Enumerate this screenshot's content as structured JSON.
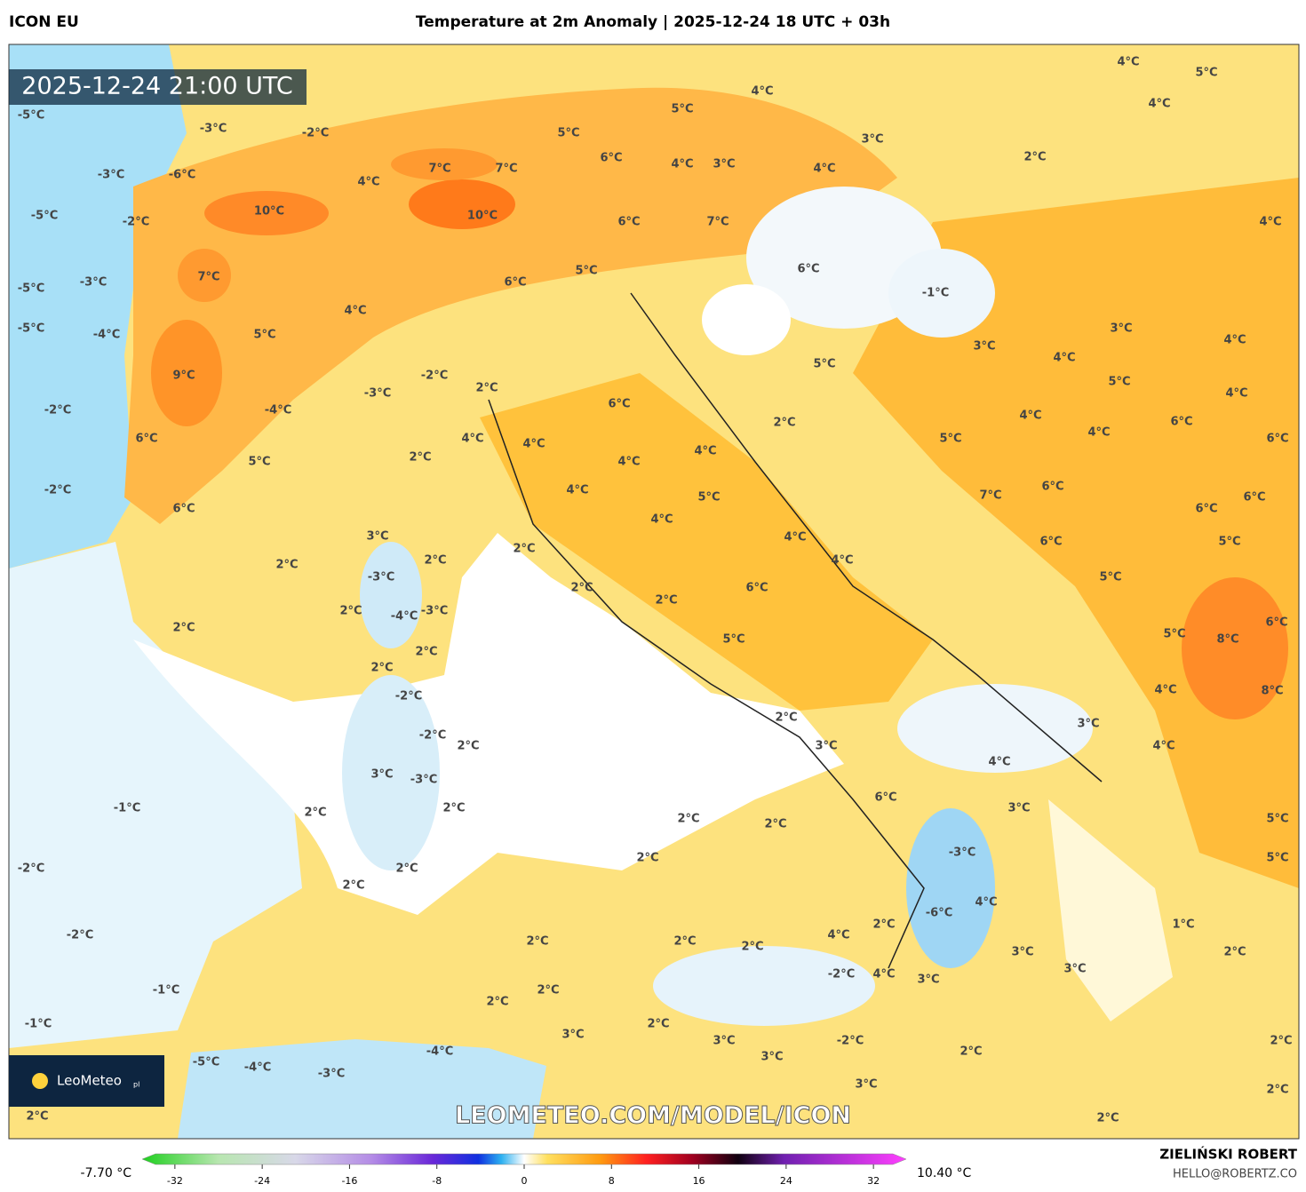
{
  "header": {
    "model": "ICON EU",
    "title": "Temperature at 2m Anomaly | 2025-12-24 18 UTC + 03h"
  },
  "map": {
    "valid_time": "2025-12-24 21:00 UTC",
    "watermark": "LEOMETEO.COM/MODEL/ICON",
    "logo": {
      "name": "LeoMeteo",
      "suffix": "pl"
    },
    "labels": [
      "-5°C",
      "-3°C",
      "-2°C",
      "-3°C",
      "-6°C",
      "4°C",
      "7°C",
      "7°C",
      "5°C",
      "5°C",
      "4°C",
      "6°C",
      "4°C",
      "3°C",
      "4°C",
      "3°C",
      "4°C",
      "5°C",
      "4°C",
      "2°C",
      "-5°C",
      "-2°C",
      "10°C",
      "10°C",
      "6°C",
      "7°C",
      "4°C",
      "-5°C",
      "-3°C",
      "7°C",
      "5°C",
      "6°C",
      "6°C",
      "-1°C",
      "-5°C",
      "-4°C",
      "4°C",
      "5°C",
      "3°C",
      "4°C",
      "3°C",
      "4°C",
      "9°C",
      "-3°C",
      "-2°C",
      "2°C",
      "5°C",
      "5°C",
      "4°C",
      "-2°C",
      "-4°C",
      "6°C",
      "2°C",
      "4°C",
      "4°C",
      "6°C",
      "6°C",
      "4°C",
      "4°C",
      "5°C",
      "6°C",
      "2°C",
      "4°C",
      "5°C",
      "4°C",
      "-2°C",
      "6°C",
      "4°C",
      "5°C",
      "7°C",
      "6°C",
      "6°C",
      "6°C",
      "3°C",
      "4°C",
      "4°C",
      "6°C",
      "5°C",
      "2°C",
      "2°C",
      "2°C",
      "4°C",
      "-3°C",
      "2°C",
      "6°C",
      "5°C",
      "2°C",
      "-4°C",
      "-3°C",
      "2°C",
      "2°C",
      "2°C",
      "5°C",
      "5°C",
      "8°C",
      "6°C",
      "2°C",
      "-2°C",
      "2°C",
      "4°C",
      "8°C",
      "-2°C",
      "2°C",
      "3°C",
      "3°C",
      "4°C",
      "4°C",
      "3°C",
      "-3°C",
      "6°C",
      "-1°C",
      "2°C",
      "3°C",
      "2°C",
      "2°C",
      "2°C",
      "5°C",
      "-3°C",
      "2°C",
      "5°C",
      "-2°C",
      "2°C",
      "2°C",
      "4°C",
      "-6°C",
      "2°C",
      "1°C",
      "-2°C",
      "4°C",
      "2°C",
      "2°C",
      "2°C",
      "3°C",
      "2°C",
      "-2°C",
      "4°C",
      "3°C",
      "3°C",
      "-1°C",
      "2°C",
      "2°C",
      "-1°C",
      "2°C",
      "3°C",
      "3°C",
      "-2°C",
      "2°C",
      "2°C",
      "-4°C",
      "3°C",
      "-5°C",
      "-4°C",
      "-3°C",
      "2°C",
      "3°C",
      "2°C",
      "2°C"
    ]
  },
  "legend": {
    "min_label": "-7.70 °C",
    "max_label": "10.40 °C",
    "lim": [
      -35,
      35
    ],
    "ticks": [
      -32,
      -24,
      -16,
      -8,
      0,
      8,
      16,
      24,
      32
    ]
  },
  "footer": {
    "author": "ZIELIŃSKI ROBERT",
    "email": "HELLO@ROBERTZ.CO"
  }
}
